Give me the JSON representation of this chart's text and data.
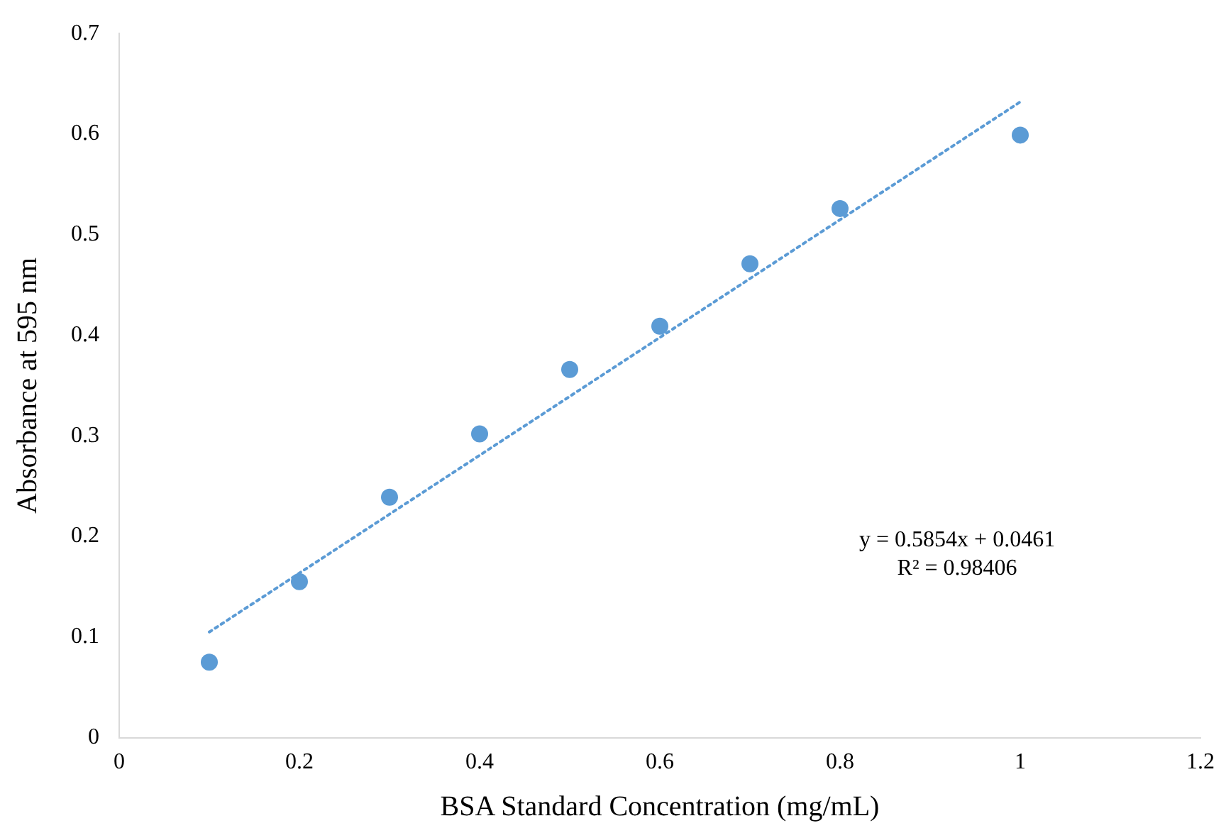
{
  "chart_data": {
    "type": "scatter",
    "xlabel": "BSA Standard Concentration (mg/mL)",
    "ylabel": "Absorbance at 595 nm",
    "xlim": [
      0,
      1.2
    ],
    "xticks": [
      0,
      0.2,
      0.4,
      0.6,
      0.8,
      1,
      1.2
    ],
    "ylim": [
      0,
      0.7
    ],
    "yticks": [
      0,
      0.1,
      0.2,
      0.3,
      0.4,
      0.5,
      0.6,
      0.7
    ],
    "grid": false,
    "legend": false,
    "marker": "circle",
    "series": [
      {
        "color": "#5b9bd5",
        "x": [
          0.1,
          0.2,
          0.3,
          0.4,
          0.5,
          0.6,
          0.7,
          0.8,
          1.0
        ],
        "values": [
          0.075,
          0.155,
          0.239,
          0.302,
          0.366,
          0.409,
          0.471,
          0.526,
          0.599
        ]
      },
      {
        "type": "line",
        "color": "#5b9bd5",
        "line_style": "dotted",
        "marker": "none",
        "x": [
          0.1,
          1.0
        ],
        "values": [
          0.105,
          0.632
        ]
      }
    ],
    "annotations": [
      "y = 0.5854x + 0.0461",
      "R² = 0.98406"
    ]
  }
}
